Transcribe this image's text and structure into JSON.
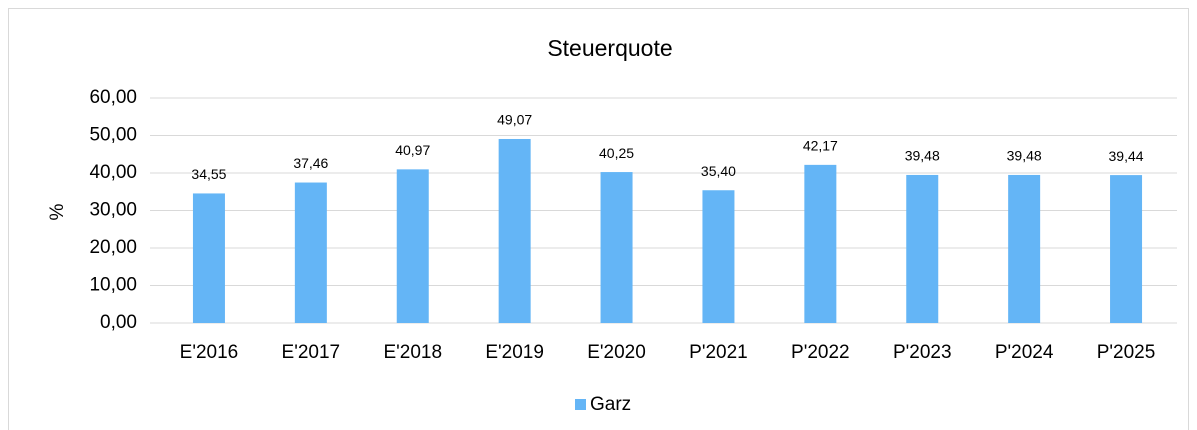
{
  "chart_data": {
    "type": "bar",
    "title": "Steuerquote",
    "y_label": "%",
    "categories": [
      "E'2016",
      "E'2017",
      "E'2018",
      "E'2019",
      "E'2020",
      "P'2021",
      "P'2022",
      "P'2023",
      "P'2024",
      "P'2025"
    ],
    "series": [
      {
        "name": "Garz",
        "color": "#64b5f6",
        "values": [
          34.55,
          37.46,
          40.97,
          49.07,
          40.25,
          35.4,
          42.17,
          39.48,
          39.48,
          39.44
        ],
        "value_labels": [
          "34,55",
          "37,46",
          "40,97",
          "49,07",
          "40,25",
          "35,40",
          "42,17",
          "39,48",
          "39,48",
          "39,44"
        ]
      }
    ],
    "ylim": [
      0,
      60
    ],
    "yticks": [
      {
        "value": 0,
        "label": "0,00"
      },
      {
        "value": 10,
        "label": "10,00"
      },
      {
        "value": 20,
        "label": "20,00"
      },
      {
        "value": 30,
        "label": "30,00"
      },
      {
        "value": 40,
        "label": "40,00"
      },
      {
        "value": 50,
        "label": "50,00"
      },
      {
        "value": 60,
        "label": "60,00"
      }
    ],
    "grid": true,
    "legend": "bottom"
  }
}
